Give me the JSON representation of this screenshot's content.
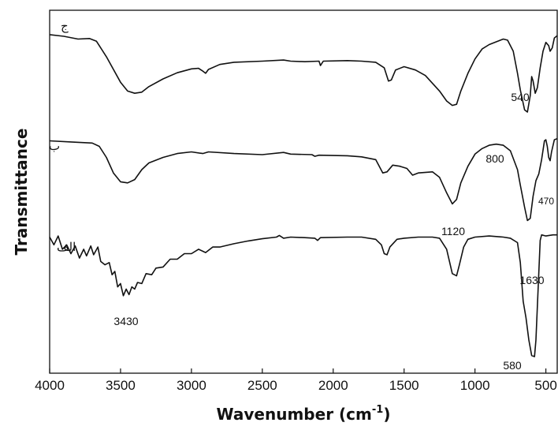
{
  "chart_data": {
    "type": "line",
    "xlabel": "Wavenumber (cm",
    "xlabel_sup": "-1",
    "xlabel_end": ")",
    "ylabel": "Transmittance",
    "xlim": [
      4000,
      420
    ],
    "x_reversed": true,
    "xticks": [
      4000,
      3500,
      3000,
      2500,
      2000,
      1500,
      1000,
      500
    ],
    "y_ticks_shown": false,
    "grid": false,
    "series": [
      {
        "name": "ج",
        "offset": 0.86,
        "points": [
          [
            4000,
            0.1
          ],
          [
            3900,
            0.085
          ],
          [
            3800,
            0.06
          ],
          [
            3720,
            0.065
          ],
          [
            3670,
            0.04
          ],
          [
            3600,
            -0.1
          ],
          [
            3500,
            -0.33
          ],
          [
            3450,
            -0.41
          ],
          [
            3400,
            -0.43
          ],
          [
            3350,
            -0.42
          ],
          [
            3300,
            -0.37
          ],
          [
            3200,
            -0.3
          ],
          [
            3100,
            -0.245
          ],
          [
            3000,
            -0.21
          ],
          [
            2950,
            -0.205
          ],
          [
            2920,
            -0.23
          ],
          [
            2900,
            -0.25
          ],
          [
            2880,
            -0.215
          ],
          [
            2800,
            -0.17
          ],
          [
            2700,
            -0.15
          ],
          [
            2500,
            -0.14
          ],
          [
            2350,
            -0.13
          ],
          [
            2300,
            -0.14
          ],
          [
            2200,
            -0.145
          ],
          [
            2100,
            -0.14
          ],
          [
            2090,
            -0.18
          ],
          [
            2070,
            -0.14
          ],
          [
            1900,
            -0.135
          ],
          [
            1800,
            -0.14
          ],
          [
            1700,
            -0.15
          ],
          [
            1640,
            -0.2
          ],
          [
            1610,
            -0.32
          ],
          [
            1590,
            -0.31
          ],
          [
            1560,
            -0.22
          ],
          [
            1500,
            -0.19
          ],
          [
            1420,
            -0.22
          ],
          [
            1350,
            -0.27
          ],
          [
            1300,
            -0.34
          ],
          [
            1250,
            -0.41
          ],
          [
            1200,
            -0.5
          ],
          [
            1160,
            -0.54
          ],
          [
            1130,
            -0.53
          ],
          [
            1100,
            -0.41
          ],
          [
            1050,
            -0.25
          ],
          [
            1000,
            -0.12
          ],
          [
            950,
            -0.03
          ],
          [
            900,
            0.01
          ],
          [
            850,
            0.035
          ],
          [
            800,
            0.06
          ],
          [
            770,
            0.05
          ],
          [
            730,
            -0.05
          ],
          [
            700,
            -0.25
          ],
          [
            680,
            -0.4
          ],
          [
            650,
            -0.58
          ],
          [
            630,
            -0.6
          ],
          [
            610,
            -0.45
          ],
          [
            600,
            -0.28
          ],
          [
            590,
            -0.32
          ],
          [
            575,
            -0.43
          ],
          [
            560,
            -0.38
          ],
          [
            540,
            -0.2
          ],
          [
            520,
            -0.05
          ],
          [
            500,
            0.03
          ],
          [
            480,
            0.0
          ],
          [
            470,
            -0.05
          ],
          [
            455,
            -0.02
          ],
          [
            440,
            0.07
          ],
          [
            420,
            0.09
          ]
        ]
      },
      {
        "name": "ب",
        "offset": 0.0,
        "points": [
          [
            4000,
            0.0
          ],
          [
            3850,
            -0.01
          ],
          [
            3700,
            -0.02
          ],
          [
            3650,
            -0.05
          ],
          [
            3600,
            -0.15
          ],
          [
            3550,
            -0.29
          ],
          [
            3500,
            -0.37
          ],
          [
            3450,
            -0.38
          ],
          [
            3400,
            -0.35
          ],
          [
            3350,
            -0.26
          ],
          [
            3300,
            -0.2
          ],
          [
            3200,
            -0.15
          ],
          [
            3100,
            -0.115
          ],
          [
            3000,
            -0.1
          ],
          [
            2920,
            -0.115
          ],
          [
            2880,
            -0.1
          ],
          [
            2700,
            -0.115
          ],
          [
            2500,
            -0.125
          ],
          [
            2350,
            -0.105
          ],
          [
            2300,
            -0.12
          ],
          [
            2150,
            -0.125
          ],
          [
            2130,
            -0.14
          ],
          [
            2100,
            -0.13
          ],
          [
            1900,
            -0.135
          ],
          [
            1800,
            -0.145
          ],
          [
            1700,
            -0.17
          ],
          [
            1650,
            -0.29
          ],
          [
            1620,
            -0.28
          ],
          [
            1580,
            -0.22
          ],
          [
            1530,
            -0.23
          ],
          [
            1480,
            -0.25
          ],
          [
            1440,
            -0.31
          ],
          [
            1400,
            -0.29
          ],
          [
            1300,
            -0.28
          ],
          [
            1250,
            -0.33
          ],
          [
            1200,
            -0.47
          ],
          [
            1160,
            -0.57
          ],
          [
            1130,
            -0.53
          ],
          [
            1100,
            -0.38
          ],
          [
            1050,
            -0.23
          ],
          [
            1000,
            -0.12
          ],
          [
            950,
            -0.07
          ],
          [
            900,
            -0.04
          ],
          [
            850,
            -0.03
          ],
          [
            800,
            -0.04
          ],
          [
            750,
            -0.09
          ],
          [
            700,
            -0.26
          ],
          [
            680,
            -0.4
          ],
          [
            650,
            -0.6
          ],
          [
            630,
            -0.72
          ],
          [
            610,
            -0.7
          ],
          [
            590,
            -0.5
          ],
          [
            570,
            -0.36
          ],
          [
            550,
            -0.3
          ],
          [
            530,
            -0.17
          ],
          [
            510,
            0.0
          ],
          [
            500,
            0.01
          ],
          [
            490,
            -0.05
          ],
          [
            480,
            -0.15
          ],
          [
            470,
            -0.18
          ],
          [
            460,
            -0.1
          ],
          [
            440,
            0.01
          ],
          [
            420,
            0.02
          ]
        ]
      },
      {
        "name": "الف",
        "offset": -0.9,
        "points": [
          [
            4000,
            0.03
          ],
          [
            3970,
            -0.04
          ],
          [
            3940,
            0.04
          ],
          [
            3910,
            -0.08
          ],
          [
            3880,
            -0.04
          ],
          [
            3850,
            -0.12
          ],
          [
            3820,
            -0.05
          ],
          [
            3790,
            -0.16
          ],
          [
            3760,
            -0.08
          ],
          [
            3740,
            -0.14
          ],
          [
            3710,
            -0.05
          ],
          [
            3690,
            -0.13
          ],
          [
            3660,
            -0.06
          ],
          [
            3640,
            -0.19
          ],
          [
            3610,
            -0.22
          ],
          [
            3580,
            -0.2
          ],
          [
            3560,
            -0.31
          ],
          [
            3540,
            -0.28
          ],
          [
            3520,
            -0.42
          ],
          [
            3500,
            -0.39
          ],
          [
            3480,
            -0.5
          ],
          [
            3460,
            -0.44
          ],
          [
            3440,
            -0.49
          ],
          [
            3420,
            -0.42
          ],
          [
            3400,
            -0.44
          ],
          [
            3380,
            -0.38
          ],
          [
            3350,
            -0.39
          ],
          [
            3320,
            -0.3
          ],
          [
            3280,
            -0.31
          ],
          [
            3250,
            -0.25
          ],
          [
            3200,
            -0.24
          ],
          [
            3150,
            -0.17
          ],
          [
            3100,
            -0.17
          ],
          [
            3050,
            -0.12
          ],
          [
            3000,
            -0.12
          ],
          [
            2950,
            -0.08
          ],
          [
            2900,
            -0.11
          ],
          [
            2850,
            -0.06
          ],
          [
            2800,
            -0.06
          ],
          [
            2700,
            -0.03
          ],
          [
            2600,
            -0.005
          ],
          [
            2500,
            0.015
          ],
          [
            2400,
            0.03
          ],
          [
            2380,
            0.045
          ],
          [
            2350,
            0.02
          ],
          [
            2300,
            0.03
          ],
          [
            2200,
            0.025
          ],
          [
            2130,
            0.02
          ],
          [
            2110,
            0.0
          ],
          [
            2090,
            0.025
          ],
          [
            1900,
            0.03
          ],
          [
            1800,
            0.03
          ],
          [
            1700,
            0.01
          ],
          [
            1660,
            -0.04
          ],
          [
            1640,
            -0.12
          ],
          [
            1620,
            -0.13
          ],
          [
            1600,
            -0.06
          ],
          [
            1550,
            0.01
          ],
          [
            1500,
            0.02
          ],
          [
            1400,
            0.03
          ],
          [
            1300,
            0.03
          ],
          [
            1250,
            0.02
          ],
          [
            1200,
            -0.08
          ],
          [
            1160,
            -0.3
          ],
          [
            1130,
            -0.32
          ],
          [
            1110,
            -0.22
          ],
          [
            1080,
            -0.06
          ],
          [
            1050,
            0.01
          ],
          [
            1000,
            0.03
          ],
          [
            900,
            0.04
          ],
          [
            800,
            0.03
          ],
          [
            750,
            0.02
          ],
          [
            700,
            -0.02
          ],
          [
            680,
            -0.2
          ],
          [
            660,
            -0.55
          ],
          [
            640,
            -0.7
          ],
          [
            620,
            -0.9
          ],
          [
            600,
            -1.04
          ],
          [
            580,
            -1.05
          ],
          [
            570,
            -0.9
          ],
          [
            560,
            -0.6
          ],
          [
            550,
            -0.3
          ],
          [
            540,
            0.0
          ],
          [
            530,
            0.05
          ],
          [
            500,
            0.04
          ],
          [
            450,
            0.05
          ],
          [
            420,
            0.05
          ]
        ]
      }
    ],
    "annotations": [
      {
        "text": "540",
        "series": 0,
        "x": 540,
        "size": "normal"
      },
      {
        "text": "800",
        "series": 1,
        "x": 800,
        "size": "normal"
      },
      {
        "text": "1120",
        "series": 1,
        "x": 1120,
        "size": "normal"
      },
      {
        "text": "470",
        "series": 1,
        "x": 470,
        "size": "small"
      },
      {
        "text": "1630",
        "series": 2,
        "x": 1630,
        "size": "normal"
      },
      {
        "text": "3430",
        "series": 2,
        "x": 3430,
        "size": "normal"
      },
      {
        "text": "580",
        "series": 2,
        "x": 580,
        "size": "normal"
      }
    ]
  }
}
